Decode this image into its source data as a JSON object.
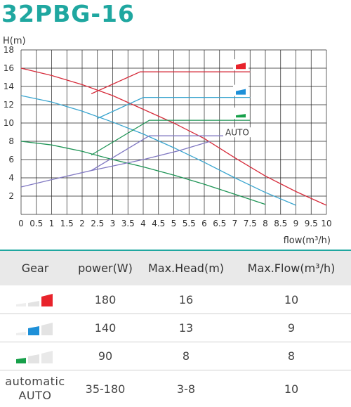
{
  "title": "32PBG-16",
  "chart_data": {
    "type": "line",
    "ylabel": "H(m)",
    "xlabel": "flow(m³/h)",
    "xlim": [
      0,
      10
    ],
    "ylim": [
      0,
      18
    ],
    "x_ticks": [
      "0",
      "0.5",
      "1",
      "1.5",
      "2",
      "2.5",
      "3",
      "3.5",
      "4",
      "4.5",
      "5",
      "5.5",
      "6",
      "6.5",
      "7",
      "7.5",
      "8",
      "8.5",
      "9",
      "9.5",
      "10"
    ],
    "y_ticks": [
      "2",
      "4",
      "6",
      "8",
      "10",
      "12",
      "14",
      "16",
      "18"
    ],
    "grid": true,
    "series": [
      {
        "color": "#d62b3a",
        "points": [
          [
            0,
            16
          ],
          [
            1,
            15.2
          ],
          [
            2,
            14.2
          ],
          [
            3,
            13
          ],
          [
            4,
            11.5
          ],
          [
            5,
            10
          ],
          [
            6,
            8.3
          ],
          [
            7,
            6.2
          ],
          [
            8,
            4.2
          ],
          [
            9,
            2.5
          ],
          [
            10,
            1
          ]
        ]
      },
      {
        "color": "#3aa5cf",
        "points": [
          [
            0,
            13
          ],
          [
            1,
            12.3
          ],
          [
            2,
            11.3
          ],
          [
            3,
            10.1
          ],
          [
            4,
            8.8
          ],
          [
            5,
            7.3
          ],
          [
            6,
            5.7
          ],
          [
            7,
            4
          ],
          [
            8,
            2.4
          ],
          [
            9,
            1
          ]
        ]
      },
      {
        "color": "#1e9455",
        "points": [
          [
            0,
            8
          ],
          [
            1,
            7.6
          ],
          [
            2,
            6.9
          ],
          [
            3,
            6
          ],
          [
            4,
            5.2
          ],
          [
            5,
            4.3
          ],
          [
            6,
            3.3
          ],
          [
            7,
            2.2
          ],
          [
            8,
            1.1
          ]
        ]
      },
      {
        "color": "#8078c2",
        "points": [
          [
            0,
            3
          ],
          [
            1,
            3.8
          ],
          [
            2.3,
            4.8
          ],
          [
            4,
            6
          ],
          [
            5.2,
            7
          ],
          [
            6.2,
            8
          ]
        ]
      },
      {
        "color": "#d62b3a",
        "points": [
          [
            2.3,
            13.2
          ],
          [
            3.9,
            15.6
          ],
          [
            7.5,
            15.6
          ]
        ]
      },
      {
        "color": "#3aa5cf",
        "points": [
          [
            2.5,
            10.5
          ],
          [
            4,
            12.8
          ],
          [
            7.5,
            12.8
          ]
        ]
      },
      {
        "color": "#1e9455",
        "points": [
          [
            2.3,
            6.5
          ],
          [
            4.2,
            10.3
          ],
          [
            7.5,
            10.3
          ]
        ]
      },
      {
        "color": "#8078c2",
        "points": [
          [
            2.3,
            4.8
          ],
          [
            4.2,
            8.6
          ],
          [
            7.2,
            8.6
          ]
        ]
      }
    ],
    "legend": [
      {
        "gear": "high",
        "color": "#e8232b"
      },
      {
        "gear": "medium",
        "color": "#1e90d8"
      },
      {
        "gear": "low",
        "color": "#17a04a"
      },
      {
        "label": "AUTO"
      }
    ]
  },
  "table": {
    "headers": [
      "Gear",
      "power(W)",
      "Max.Head(m)",
      "Max.Flow(m³/h)"
    ],
    "rows": [
      {
        "gear_icon": "gear-high-icon",
        "power": "180",
        "max_head": "16",
        "max_flow": "10"
      },
      {
        "gear_icon": "gear-medium-icon",
        "power": "140",
        "max_head": "13",
        "max_flow": "9"
      },
      {
        "gear_icon": "gear-low-icon",
        "power": "90",
        "max_head": "8",
        "max_flow": "8"
      },
      {
        "gear_label_1": "automatic",
        "gear_label_2": "AUTO",
        "power": "35-180",
        "max_head": "3-8",
        "max_flow": "10"
      }
    ]
  }
}
